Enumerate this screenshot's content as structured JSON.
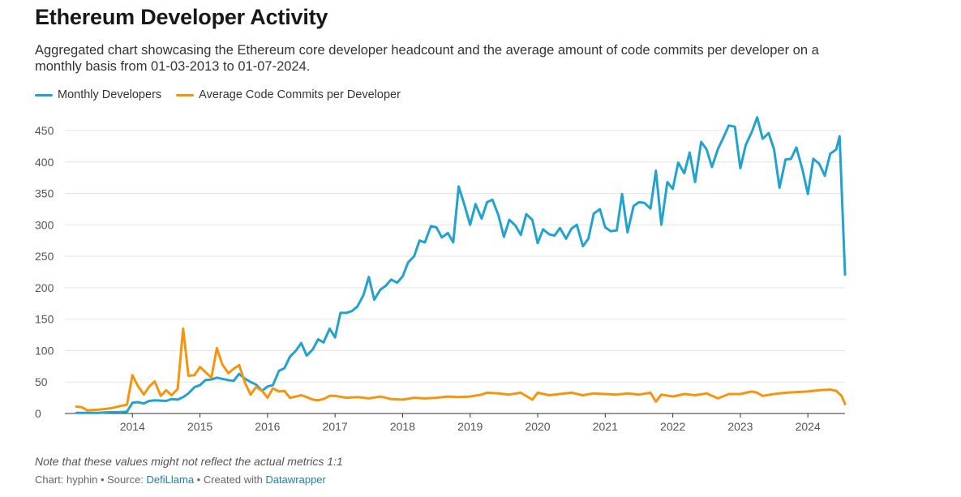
{
  "title": "Ethereum Developer Activity",
  "subtitle": "Aggregated chart showcasing the Ethereum core developer headcount and the average amount of code commits per developer on a monthly basis from 01-03-2013 to 01-07-2024.",
  "note": "Note that these values might not reflect the actual metrics 1:1",
  "footer": {
    "chart_label": "Chart: hyphin",
    "sep1": " • Source: ",
    "source": "DefiLlama",
    "sep2": " • Created with ",
    "tool": "Datawrapper"
  },
  "colors": {
    "developers": "#22a3cf",
    "commits": "#f7940d",
    "grid": "#e4e4e4",
    "link": "#1d81a2"
  },
  "chart_data": {
    "type": "line",
    "title": "Ethereum Developer Activity",
    "xlabel": "",
    "ylabel": "",
    "ylim": [
      0,
      450
    ],
    "xlim": [
      2013.0,
      2024.55
    ],
    "y_ticks": [
      "0",
      "50",
      "100",
      "150",
      "200",
      "250",
      "300",
      "350",
      "400",
      "450"
    ],
    "x_ticks": [
      "2014",
      "2015",
      "2016",
      "2017",
      "2018",
      "2019",
      "2020",
      "2021",
      "2022",
      "2023",
      "2024"
    ],
    "grid": true,
    "legend_position": "top-left",
    "series": [
      {
        "name": "Monthly Developers",
        "color": "#22a3cf",
        "points": [
          [
            2013.17,
            1
          ],
          [
            2013.33,
            1
          ],
          [
            2013.5,
            1
          ],
          [
            2013.67,
            2
          ],
          [
            2013.83,
            2
          ],
          [
            2013.92,
            3
          ],
          [
            2014.0,
            17
          ],
          [
            2014.08,
            18
          ],
          [
            2014.17,
            16
          ],
          [
            2014.25,
            20
          ],
          [
            2014.33,
            21
          ],
          [
            2014.5,
            20
          ],
          [
            2014.58,
            23
          ],
          [
            2014.67,
            22
          ],
          [
            2014.75,
            26
          ],
          [
            2014.83,
            32
          ],
          [
            2014.92,
            42
          ],
          [
            2015.0,
            45
          ],
          [
            2015.08,
            53
          ],
          [
            2015.17,
            54
          ],
          [
            2015.25,
            57
          ],
          [
            2015.33,
            55
          ],
          [
            2015.42,
            53
          ],
          [
            2015.5,
            52
          ],
          [
            2015.58,
            63
          ],
          [
            2015.67,
            55
          ],
          [
            2015.75,
            50
          ],
          [
            2015.83,
            46
          ],
          [
            2015.92,
            36
          ],
          [
            2016.0,
            43
          ],
          [
            2016.08,
            45
          ],
          [
            2016.17,
            68
          ],
          [
            2016.25,
            72
          ],
          [
            2016.33,
            90
          ],
          [
            2016.42,
            100
          ],
          [
            2016.5,
            112
          ],
          [
            2016.58,
            92
          ],
          [
            2016.67,
            102
          ],
          [
            2016.75,
            118
          ],
          [
            2016.83,
            113
          ],
          [
            2016.92,
            135
          ],
          [
            2017.0,
            121
          ],
          [
            2017.08,
            160
          ],
          [
            2017.17,
            160
          ],
          [
            2017.25,
            163
          ],
          [
            2017.33,
            170
          ],
          [
            2017.42,
            188
          ],
          [
            2017.5,
            217
          ],
          [
            2017.58,
            181
          ],
          [
            2017.67,
            197
          ],
          [
            2017.75,
            203
          ],
          [
            2017.83,
            213
          ],
          [
            2017.92,
            208
          ],
          [
            2018.0,
            218
          ],
          [
            2018.08,
            240
          ],
          [
            2018.17,
            250
          ],
          [
            2018.25,
            275
          ],
          [
            2018.33,
            272
          ],
          [
            2018.42,
            298
          ],
          [
            2018.5,
            296
          ],
          [
            2018.58,
            280
          ],
          [
            2018.67,
            287
          ],
          [
            2018.75,
            272
          ],
          [
            2018.83,
            361
          ],
          [
            2018.92,
            330
          ],
          [
            2019.0,
            300
          ],
          [
            2019.08,
            333
          ],
          [
            2019.17,
            310
          ],
          [
            2019.25,
            336
          ],
          [
            2019.33,
            340
          ],
          [
            2019.42,
            315
          ],
          [
            2019.5,
            281
          ],
          [
            2019.58,
            308
          ],
          [
            2019.67,
            299
          ],
          [
            2019.75,
            284
          ],
          [
            2019.83,
            317
          ],
          [
            2019.92,
            308
          ],
          [
            2020.0,
            271
          ],
          [
            2020.08,
            293
          ],
          [
            2020.17,
            285
          ],
          [
            2020.25,
            283
          ],
          [
            2020.33,
            295
          ],
          [
            2020.42,
            278
          ],
          [
            2020.5,
            294
          ],
          [
            2020.58,
            300
          ],
          [
            2020.67,
            266
          ],
          [
            2020.75,
            278
          ],
          [
            2020.83,
            318
          ],
          [
            2020.92,
            325
          ],
          [
            2021.0,
            296
          ],
          [
            2021.08,
            290
          ],
          [
            2021.17,
            291
          ],
          [
            2021.25,
            349
          ],
          [
            2021.33,
            288
          ],
          [
            2021.42,
            330
          ],
          [
            2021.5,
            336
          ],
          [
            2021.58,
            335
          ],
          [
            2021.67,
            326
          ],
          [
            2021.75,
            386
          ],
          [
            2021.83,
            300
          ],
          [
            2021.92,
            368
          ],
          [
            2022.0,
            357
          ],
          [
            2022.08,
            399
          ],
          [
            2022.17,
            382
          ],
          [
            2022.25,
            415
          ],
          [
            2022.33,
            368
          ],
          [
            2022.42,
            432
          ],
          [
            2022.5,
            420
          ],
          [
            2022.58,
            392
          ],
          [
            2022.67,
            421
          ],
          [
            2022.75,
            439
          ],
          [
            2022.83,
            458
          ],
          [
            2022.92,
            456
          ],
          [
            2023.0,
            390
          ],
          [
            2023.08,
            427
          ],
          [
            2023.17,
            448
          ],
          [
            2023.25,
            471
          ],
          [
            2023.33,
            437
          ],
          [
            2023.42,
            446
          ],
          [
            2023.5,
            420
          ],
          [
            2023.58,
            359
          ],
          [
            2023.67,
            404
          ],
          [
            2023.75,
            405
          ],
          [
            2023.83,
            423
          ],
          [
            2023.92,
            388
          ],
          [
            2024.0,
            349
          ],
          [
            2024.08,
            405
          ],
          [
            2024.17,
            397
          ],
          [
            2024.25,
            378
          ],
          [
            2024.33,
            413
          ],
          [
            2024.42,
            420
          ],
          [
            2024.47,
            441
          ],
          [
            2024.55,
            221
          ]
        ]
      },
      {
        "name": "Average Code Commits per Developer",
        "color": "#f7940d",
        "points": [
          [
            2013.17,
            11
          ],
          [
            2013.25,
            10
          ],
          [
            2013.33,
            5
          ],
          [
            2013.5,
            6
          ],
          [
            2013.67,
            8
          ],
          [
            2013.83,
            12
          ],
          [
            2013.92,
            14
          ],
          [
            2014.0,
            61
          ],
          [
            2014.08,
            44
          ],
          [
            2014.17,
            30
          ],
          [
            2014.25,
            43
          ],
          [
            2014.33,
            51
          ],
          [
            2014.42,
            28
          ],
          [
            2014.5,
            37
          ],
          [
            2014.58,
            29
          ],
          [
            2014.67,
            39
          ],
          [
            2014.75,
            135
          ],
          [
            2014.83,
            60
          ],
          [
            2014.92,
            61
          ],
          [
            2015.0,
            74
          ],
          [
            2015.08,
            66
          ],
          [
            2015.17,
            57
          ],
          [
            2015.25,
            104
          ],
          [
            2015.33,
            78
          ],
          [
            2015.42,
            64
          ],
          [
            2015.5,
            71
          ],
          [
            2015.58,
            77
          ],
          [
            2015.67,
            48
          ],
          [
            2015.75,
            30
          ],
          [
            2015.83,
            42
          ],
          [
            2015.92,
            36
          ],
          [
            2016.0,
            25
          ],
          [
            2016.08,
            40
          ],
          [
            2016.17,
            35
          ],
          [
            2016.25,
            36
          ],
          [
            2016.33,
            25
          ],
          [
            2016.42,
            27
          ],
          [
            2016.5,
            29
          ],
          [
            2016.58,
            26
          ],
          [
            2016.67,
            22
          ],
          [
            2016.75,
            21
          ],
          [
            2016.83,
            23
          ],
          [
            2016.92,
            28
          ],
          [
            2017.0,
            28
          ],
          [
            2017.17,
            25
          ],
          [
            2017.33,
            26
          ],
          [
            2017.5,
            24
          ],
          [
            2017.67,
            27
          ],
          [
            2017.83,
            23
          ],
          [
            2018.0,
            22
          ],
          [
            2018.17,
            25
          ],
          [
            2018.33,
            24
          ],
          [
            2018.5,
            25
          ],
          [
            2018.67,
            27
          ],
          [
            2018.83,
            26
          ],
          [
            2019.0,
            27
          ],
          [
            2019.17,
            30
          ],
          [
            2019.25,
            33
          ],
          [
            2019.42,
            32
          ],
          [
            2019.58,
            30
          ],
          [
            2019.75,
            33
          ],
          [
            2019.92,
            22
          ],
          [
            2020.0,
            33
          ],
          [
            2020.17,
            29
          ],
          [
            2020.33,
            31
          ],
          [
            2020.5,
            33
          ],
          [
            2020.67,
            29
          ],
          [
            2020.83,
            32
          ],
          [
            2021.0,
            31
          ],
          [
            2021.17,
            30
          ],
          [
            2021.33,
            32
          ],
          [
            2021.5,
            30
          ],
          [
            2021.67,
            33
          ],
          [
            2021.75,
            19
          ],
          [
            2021.83,
            30
          ],
          [
            2022.0,
            27
          ],
          [
            2022.17,
            31
          ],
          [
            2022.33,
            29
          ],
          [
            2022.5,
            32
          ],
          [
            2022.67,
            24
          ],
          [
            2022.83,
            31
          ],
          [
            2023.0,
            31
          ],
          [
            2023.17,
            35
          ],
          [
            2023.25,
            33
          ],
          [
            2023.33,
            28
          ],
          [
            2023.5,
            31
          ],
          [
            2023.67,
            33
          ],
          [
            2023.83,
            34
          ],
          [
            2024.0,
            35
          ],
          [
            2024.17,
            37
          ],
          [
            2024.33,
            38
          ],
          [
            2024.42,
            36
          ],
          [
            2024.5,
            28
          ],
          [
            2024.55,
            15
          ]
        ]
      }
    ]
  }
}
